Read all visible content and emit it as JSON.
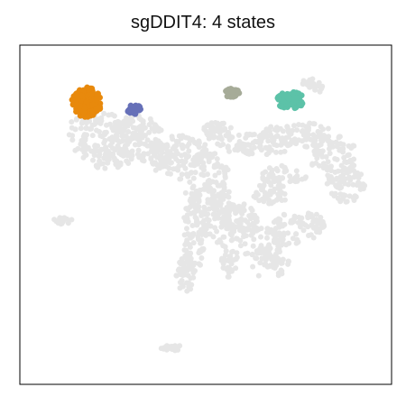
{
  "chart_data": {
    "type": "scatter",
    "title": "sgDDIT4: 4 states",
    "xlabel": "",
    "ylabel": "",
    "axes_ticks": false,
    "grid": false,
    "legend": "none",
    "background_color": "#e6e6e6",
    "background_description": "grey UMAP embedding of all cells",
    "series": [
      {
        "color": "#e8890c",
        "x_range": [
          -7.2,
          -5.6
        ],
        "y_range": [
          4.6,
          6.0
        ]
      },
      {
        "color": "#6670b8",
        "x_range": [
          -4.2,
          -3.5
        ],
        "y_range": [
          4.7,
          5.2
        ]
      },
      {
        "color": "#a6ab98",
        "x_range": [
          1.0,
          1.8
        ],
        "y_range": [
          5.55,
          5.95
        ]
      },
      {
        "color": "#5cc2a8",
        "x_range": [
          3.8,
          5.3
        ],
        "y_range": [
          5.0,
          5.8
        ]
      }
    ]
  }
}
